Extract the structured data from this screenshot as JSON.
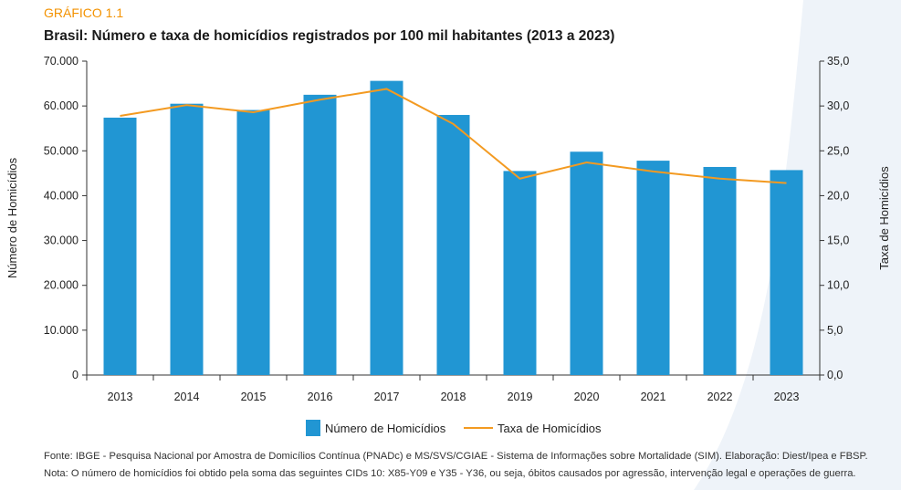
{
  "chart_label": "GRÁFICO 1.1",
  "title": "Brasil: Número e taxa de homicídios registrados por 100 mil habitantes (2013 a 2023)",
  "source": "Fonte: IBGE - Pesquisa Nacional por Amostra de Domicílios Contínua (PNADc) e MS/SVS/CGIAE - Sistema de Informações sobre Mortalidade (SIM). Elaboração: Diest/Ipea e FBSP.",
  "note": "Nota: O número de homicídios foi obtido pela soma das seguintes CIDs 10: X85-Y09 e Y35 - Y36, ou seja, óbitos causados por agressão, intervenção legal e operações de guerra.",
  "colors": {
    "bar": "#2196d3",
    "line": "#f39a21",
    "label": "#f39200",
    "decor": "#eef3f9"
  },
  "chart_data": {
    "type": "bar",
    "categories": [
      "2013",
      "2014",
      "2015",
      "2016",
      "2017",
      "2018",
      "2019",
      "2020",
      "2021",
      "2022",
      "2023"
    ],
    "series": [
      {
        "name": "Número de Homicídios",
        "type": "bar",
        "axis": "left",
        "values": [
          57400,
          60500,
          59100,
          62500,
          65600,
          58000,
          45500,
          49800,
          47800,
          46400,
          45700
        ]
      },
      {
        "name": "Taxa de Homicídios",
        "type": "line",
        "axis": "right",
        "values": [
          28.9,
          30.1,
          29.3,
          30.7,
          31.9,
          28.0,
          21.9,
          23.7,
          22.7,
          21.9,
          21.4
        ]
      }
    ],
    "ylabel": "Número de Homicídios",
    "y2label": "Taxa de Homicídios",
    "ylim": [
      0,
      70000
    ],
    "y2lim": [
      0,
      35
    ],
    "yticks": [
      "0",
      "10.000",
      "20.000",
      "30.000",
      "40.000",
      "50.000",
      "60.000",
      "70.000"
    ],
    "y2ticks": [
      "0,0",
      "5,0",
      "10,0",
      "15,0",
      "20,0",
      "25,0",
      "30,0",
      "35,0"
    ],
    "legend": "bottom-center",
    "grid": false
  }
}
